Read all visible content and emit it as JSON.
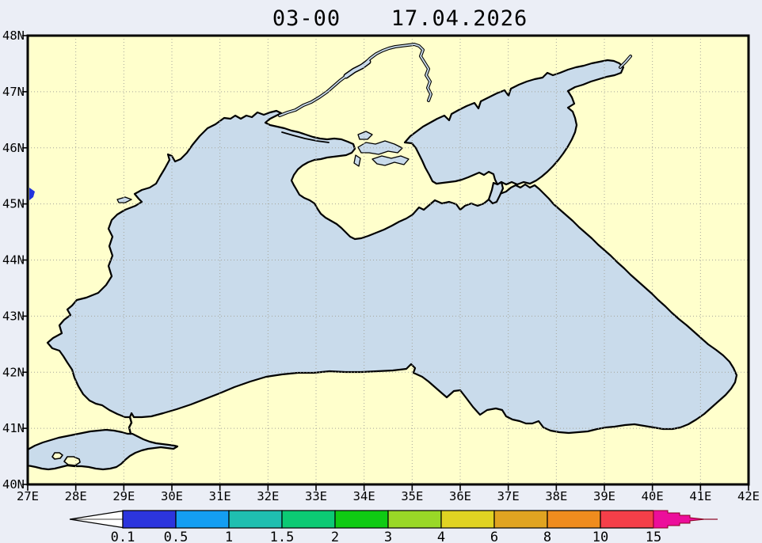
{
  "title": {
    "time": "03-00",
    "date": "17.04.2026"
  },
  "axes": {
    "x_ticks": [
      "27E",
      "28E",
      "29E",
      "30E",
      "31E",
      "32E",
      "33E",
      "34E",
      "35E",
      "36E",
      "37E",
      "38E",
      "39E",
      "40E",
      "41E",
      "42E"
    ],
    "y_ticks": [
      "48N",
      "47N",
      "46N",
      "45N",
      "44N",
      "43N",
      "42N",
      "41N",
      "40N"
    ]
  },
  "colorbar": {
    "tick_labels": [
      "0.1",
      "0.5",
      "1",
      "1.5",
      "2",
      "3",
      "4",
      "6",
      "8",
      "10",
      "15"
    ],
    "segment_colors": [
      "#2c35dd",
      "#149ef2",
      "#1fbfb0",
      "#0cca74",
      "#0fcb13",
      "#99d827",
      "#e0d322",
      "#e0a421",
      "#ef8c1e",
      "#f43f49"
    ],
    "under_arrow_color": "#ffffff",
    "over_arrow_color": "#ec0e9b",
    "arrow_outline": "#8b0020"
  },
  "colors": {
    "background": "#ebeef6",
    "land": "#ffffcc",
    "sea": "#c9dbeb",
    "coastline": "#000000",
    "grid": "#a5a59b",
    "frame": "#000000",
    "marker": "#2233dd"
  }
}
